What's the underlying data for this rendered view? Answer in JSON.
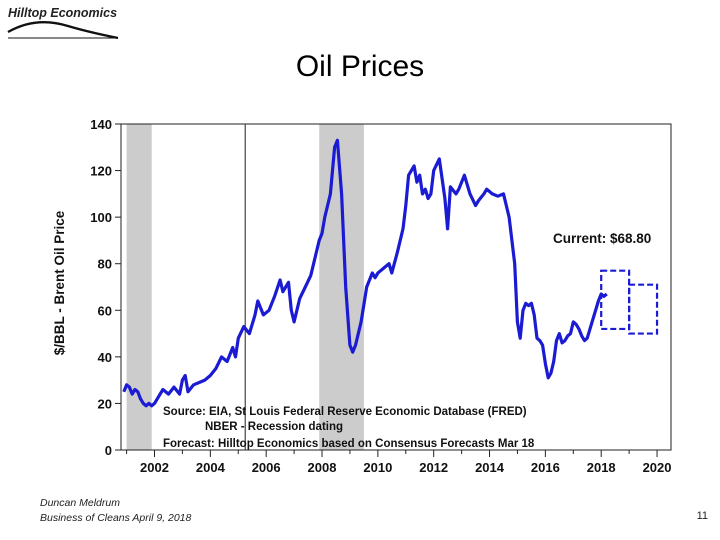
{
  "header": {
    "logo_text": "Hilltop Economics",
    "title": "Oil Prices"
  },
  "footer": {
    "author": "Duncan Meldrum",
    "event": "Business of Cleans April 9, 2018",
    "page_number": "11"
  },
  "chart_data": {
    "type": "line",
    "ylabel": "$/BBL - Brent Oil Price",
    "xlim": [
      2000.8,
      2020.5
    ],
    "ylim": [
      0,
      140
    ],
    "yticks": [
      0,
      20,
      40,
      60,
      80,
      100,
      120,
      140
    ],
    "xticks": [
      2002,
      2004,
      2006,
      2008,
      2010,
      2012,
      2014,
      2016,
      2018,
      2020
    ],
    "line_color": "#1b1bd4",
    "recession_color": "#cccccc",
    "recessions": [
      [
        2001.0,
        2001.9
      ],
      [
        2007.9,
        2009.5
      ]
    ],
    "vertical_marker": 2005.25,
    "annotation": "Current: $68.80",
    "notes": [
      "Source: EIA, St Louis Federal Reserve Economic Database (FRED)",
      "NBER - Recession dating",
      "Forecast: Hilltop Economics based on Consensus Forecasts Mar 18"
    ],
    "forecast_ranges": [
      {
        "x": [
          2018.0,
          2019.0
        ],
        "y": [
          52,
          77
        ]
      },
      {
        "x": [
          2019.0,
          2020.0
        ],
        "y": [
          50,
          71
        ]
      }
    ],
    "series": [
      {
        "x": [
          2000.9,
          2001.0,
          2001.1,
          2001.2,
          2001.3,
          2001.4,
          2001.5,
          2001.6,
          2001.7,
          2001.8,
          2001.9,
          2002.0,
          2002.1,
          2002.3,
          2002.5,
          2002.7,
          2002.9,
          2003.0,
          2003.1,
          2003.2,
          2003.4,
          2003.6,
          2003.8,
          2004.0,
          2004.2,
          2004.4,
          2004.6,
          2004.8,
          2004.9,
          2005.0,
          2005.2,
          2005.4,
          2005.6,
          2005.7,
          2005.9,
          2006.1,
          2006.3,
          2006.5,
          2006.6,
          2006.8,
          2006.9,
          2007.0,
          2007.2,
          2007.4,
          2007.6,
          2007.7,
          2007.9,
          2008.0,
          2008.1,
          2008.3,
          2008.45,
          2008.55,
          2008.7,
          2008.85,
          2009.0,
          2009.1,
          2009.2,
          2009.4,
          2009.6,
          2009.8,
          2009.9,
          2010.0,
          2010.2,
          2010.4,
          2010.5,
          2010.7,
          2010.9,
          2011.0,
          2011.1,
          2011.3,
          2011.4,
          2011.5,
          2011.6,
          2011.7,
          2011.8,
          2011.9,
          2012.0,
          2012.2,
          2012.4,
          2012.5,
          2012.6,
          2012.8,
          2012.9,
          2013.1,
          2013.3,
          2013.5,
          2013.6,
          2013.8,
          2013.9,
          2014.1,
          2014.3,
          2014.5,
          2014.7,
          2014.9,
          2015.0,
          2015.1,
          2015.2,
          2015.3,
          2015.4,
          2015.5,
          2015.6,
          2015.7,
          2015.8,
          2015.9,
          2016.0,
          2016.1,
          2016.2,
          2016.3,
          2016.4,
          2016.5,
          2016.6,
          2016.7,
          2016.8,
          2016.9,
          2017.0,
          2017.1,
          2017.2,
          2017.3,
          2017.4,
          2017.5,
          2017.6,
          2017.7,
          2017.8,
          2017.9,
          2018.0,
          2018.1,
          2018.2
        ],
        "y": [
          25,
          28,
          27,
          24,
          26,
          25,
          22,
          20,
          19,
          20,
          19,
          20,
          22,
          26,
          24,
          27,
          24,
          30,
          32,
          25,
          28,
          29,
          30,
          32,
          35,
          40,
          38,
          44,
          40,
          48,
          53,
          50,
          58,
          64,
          58,
          60,
          66,
          73,
          68,
          72,
          60,
          55,
          65,
          70,
          75,
          80,
          90,
          93,
          100,
          110,
          130,
          133,
          110,
          70,
          45,
          42,
          45,
          55,
          70,
          76,
          74,
          76,
          78,
          80,
          76,
          85,
          95,
          105,
          118,
          122,
          115,
          118,
          110,
          112,
          108,
          110,
          120,
          125,
          108,
          95,
          113,
          110,
          112,
          118,
          110,
          105,
          107,
          110,
          112,
          110,
          109,
          110,
          100,
          80,
          55,
          48,
          60,
          63,
          62,
          63,
          58,
          48,
          47,
          45,
          37,
          31,
          33,
          38,
          47,
          50,
          46,
          47,
          49,
          50,
          55,
          54,
          52,
          49,
          47,
          48,
          52,
          56,
          60,
          64,
          67,
          66,
          67
        ]
      }
    ]
  }
}
